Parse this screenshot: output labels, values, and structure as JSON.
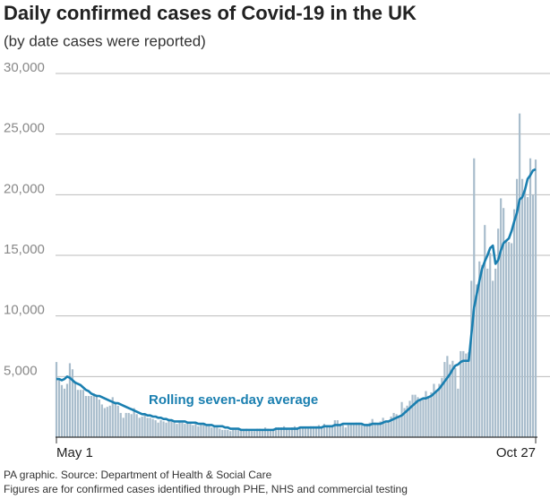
{
  "chart_data": {
    "type": "bar_line",
    "title": "Daily confirmed cases of Covid-19 in the UK",
    "subtitle": "(by date cases were reported)",
    "annotation": "Rolling seven-day average",
    "source": "PA graphic. Source: Department of Health & Social Care",
    "note": "Figures are for confirmed cases identified through PHE, NHS and commercial testing",
    "categories": [
      "May 1",
      null,
      null,
      null,
      null,
      null,
      null,
      null,
      null,
      null,
      null,
      null,
      null,
      null,
      null,
      null,
      null,
      null,
      null,
      null,
      null,
      null,
      null,
      null,
      null,
      null,
      null,
      null,
      null,
      null,
      null,
      null,
      null,
      null,
      null,
      null,
      null,
      null,
      null,
      null,
      null,
      null,
      null,
      null,
      null,
      null,
      null,
      null,
      null,
      null,
      null,
      null,
      null,
      null,
      null,
      null,
      null,
      null,
      null,
      null,
      null,
      null,
      null,
      null,
      null,
      null,
      null,
      null,
      null,
      null,
      null,
      null,
      null,
      null,
      null,
      null,
      null,
      null,
      null,
      null,
      null,
      null,
      null,
      null,
      null,
      null,
      null,
      null,
      null,
      null,
      null,
      null,
      null,
      null,
      null,
      null,
      null,
      null,
      null,
      null,
      null,
      null,
      null,
      null,
      null,
      null,
      null,
      null,
      null,
      null,
      null,
      null,
      null,
      null,
      null,
      null,
      null,
      null,
      null,
      null,
      null,
      null,
      null,
      null,
      null,
      null,
      null,
      null,
      null,
      null,
      null,
      null,
      null,
      null,
      null,
      null,
      null,
      null,
      null,
      null,
      null,
      null,
      null,
      null,
      null,
      null,
      null,
      null,
      null,
      null,
      null,
      null,
      null,
      null,
      null,
      null,
      null,
      null,
      null,
      null,
      null,
      null,
      null,
      null,
      null,
      null,
      null,
      null,
      null,
      null,
      null,
      null,
      null,
      null,
      null,
      null,
      null,
      null,
      null,
      "Oct 27"
    ],
    "series": [
      {
        "kind": "bar",
        "color": "#a9bdcc",
        "values": [
          6200,
          4800,
          4300,
          4000,
          4400,
          6100,
          5600,
          4600,
          3900,
          3900,
          3900,
          3400,
          3400,
          3400,
          3600,
          3500,
          3100,
          2700,
          2400,
          2500,
          2600,
          3300,
          2900,
          2600,
          2000,
          1600,
          2000,
          2000,
          1900,
          2400,
          1900,
          1600,
          1700,
          1800,
          1600,
          1600,
          1500,
          1400,
          1200,
          1400,
          1300,
          1200,
          1500,
          1300,
          1200,
          1100,
          1300,
          1200,
          1100,
          1300,
          1100,
          1000,
          1200,
          900,
          1100,
          1100,
          900,
          900,
          800,
          900,
          800,
          700,
          600,
          600,
          600,
          500,
          600,
          600,
          600,
          700,
          600,
          700,
          600,
          500,
          500,
          700,
          700,
          600,
          800,
          700,
          600,
          700,
          800,
          800,
          800,
          900,
          700,
          600,
          800,
          900,
          800,
          700,
          800,
          700,
          700,
          900,
          900,
          900,
          1000,
          800,
          1100,
          1000,
          900,
          1000,
          1400,
          1400,
          1000,
          1000,
          800,
          1000,
          1100,
          1100,
          1200,
          1200,
          1000,
          900,
          1100,
          1200,
          1500,
          1200,
          1100,
          1300,
          1600,
          1200,
          1300,
          1700,
          2000,
          1900,
          1700,
          2900,
          2400,
          2600,
          3000,
          3500,
          3500,
          3300,
          3100,
          3100,
          3800,
          3400,
          3700,
          4400,
          3900,
          4400,
          4900,
          6200,
          6700,
          6000,
          6300,
          5700,
          4000,
          7100,
          7100,
          6900,
          7000,
          12900,
          23000,
          12600,
          14500,
          14200,
          17500,
          13900,
          15200,
          12900,
          13900,
          17200,
          19700,
          18900,
          16200,
          16100,
          16000,
          18800,
          21300,
          26700,
          21300,
          20500,
          19800,
          23000,
          20000,
          22900
        ]
      },
      {
        "kind": "line",
        "color": "#1a7fb0",
        "values": [
          4800,
          4800,
          4700,
          4800,
          5000,
          4900,
          4700,
          4500,
          4400,
          4300,
          4100,
          3900,
          3800,
          3600,
          3500,
          3400,
          3400,
          3300,
          3200,
          3100,
          3000,
          2900,
          2800,
          2800,
          2700,
          2600,
          2500,
          2400,
          2300,
          2200,
          2100,
          2000,
          1900,
          1900,
          1800,
          1800,
          1700,
          1700,
          1600,
          1600,
          1500,
          1500,
          1400,
          1400,
          1300,
          1300,
          1300,
          1300,
          1300,
          1200,
          1200,
          1200,
          1200,
          1100,
          1100,
          1100,
          1000,
          1000,
          1000,
          900,
          900,
          900,
          900,
          800,
          800,
          700,
          700,
          700,
          700,
          600,
          600,
          600,
          600,
          600,
          600,
          600,
          600,
          600,
          600,
          600,
          600,
          600,
          700,
          700,
          700,
          700,
          700,
          700,
          700,
          700,
          700,
          800,
          800,
          800,
          800,
          800,
          800,
          800,
          800,
          800,
          900,
          900,
          900,
          900,
          1000,
          1000,
          1000,
          1100,
          1100,
          1100,
          1100,
          1100,
          1100,
          1100,
          1100,
          1000,
          1000,
          1000,
          1100,
          1100,
          1100,
          1100,
          1200,
          1300,
          1300,
          1400,
          1500,
          1600,
          1700,
          1800,
          2000,
          2200,
          2400,
          2600,
          2800,
          3000,
          3100,
          3200,
          3200,
          3300,
          3400,
          3600,
          3800,
          4000,
          4300,
          4600,
          4900,
          5200,
          5600,
          5900,
          6000,
          6200,
          6300,
          6300,
          6300,
          8500,
          10700,
          11800,
          12900,
          13900,
          14500,
          15000,
          15600,
          15800,
          14300,
          14600,
          15400,
          16000,
          16200,
          16400,
          17000,
          17800,
          18500,
          19600,
          19800,
          20400,
          21300,
          21600,
          22000,
          22100
        ]
      }
    ],
    "ylim": [
      0,
      30000
    ],
    "yticks": [
      {
        "value": 5000,
        "label": "5,000"
      },
      {
        "value": 10000,
        "label": "10,000"
      },
      {
        "value": 15000,
        "label": "15,000"
      },
      {
        "value": 20000,
        "label": "20,000"
      },
      {
        "value": 25000,
        "label": "25,000"
      },
      {
        "value": 30000,
        "label": "30,000"
      }
    ],
    "grid": true
  }
}
